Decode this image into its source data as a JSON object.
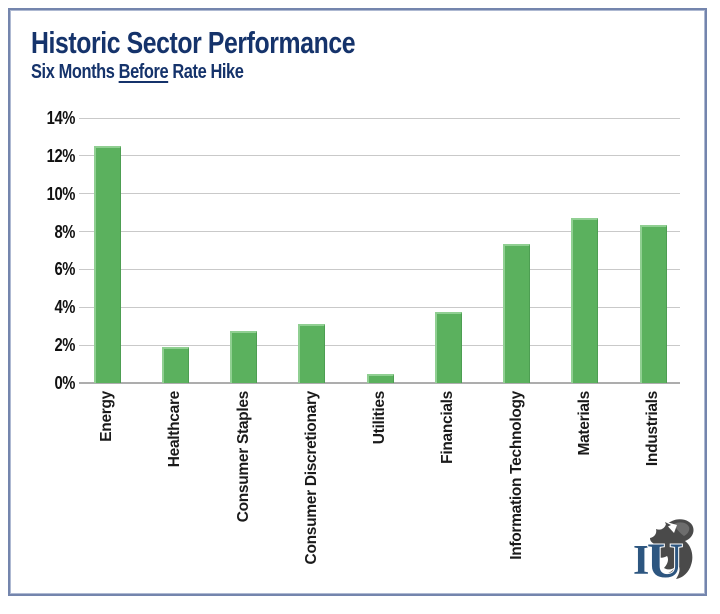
{
  "header": {
    "title": "Historic Sector Performance",
    "subtitle_prefix": "Six Months ",
    "subtitle_underlined": "Before",
    "subtitle_suffix": " Rate Hike"
  },
  "colors": {
    "title_navy": "#15336b",
    "frame_border": "#7485ad",
    "bar_green": "#5bb15e",
    "bar_highlight": "#90cf92",
    "gridline_gray": "#c9c9c9",
    "axis_gray": "#adadad",
    "label_black": "#1a1a1a",
    "logo_navy": "#2d5680",
    "logo_gray": "#4a4a4a"
  },
  "logo": {
    "letter_i": "I",
    "letter_u": "U",
    "name": "investment-u-logo"
  },
  "chart_data": {
    "type": "bar",
    "title": "Historic Sector Performance",
    "subtitle": "Six Months Before Rate Hike",
    "categories": [
      "Energy",
      "Healthcare",
      "Consumer Staples",
      "Consumer Discretionary",
      "Utilities",
      "Financials",
      "Information Technology",
      "Materials",
      "Industrials"
    ],
    "values": [
      12.5,
      1.9,
      2.75,
      3.1,
      0.45,
      3.75,
      7.35,
      8.7,
      8.35
    ],
    "unit": "%",
    "xlabel": "",
    "ylabel": "",
    "ylim": [
      0,
      14
    ],
    "ytick_step": 2,
    "ytick_labels": [
      "0%",
      "2%",
      "4%",
      "6%",
      "8%",
      "10%",
      "12%",
      "14%"
    ],
    "grid": "horizontal",
    "legend": "none",
    "bar_color": "#5bb15e"
  }
}
